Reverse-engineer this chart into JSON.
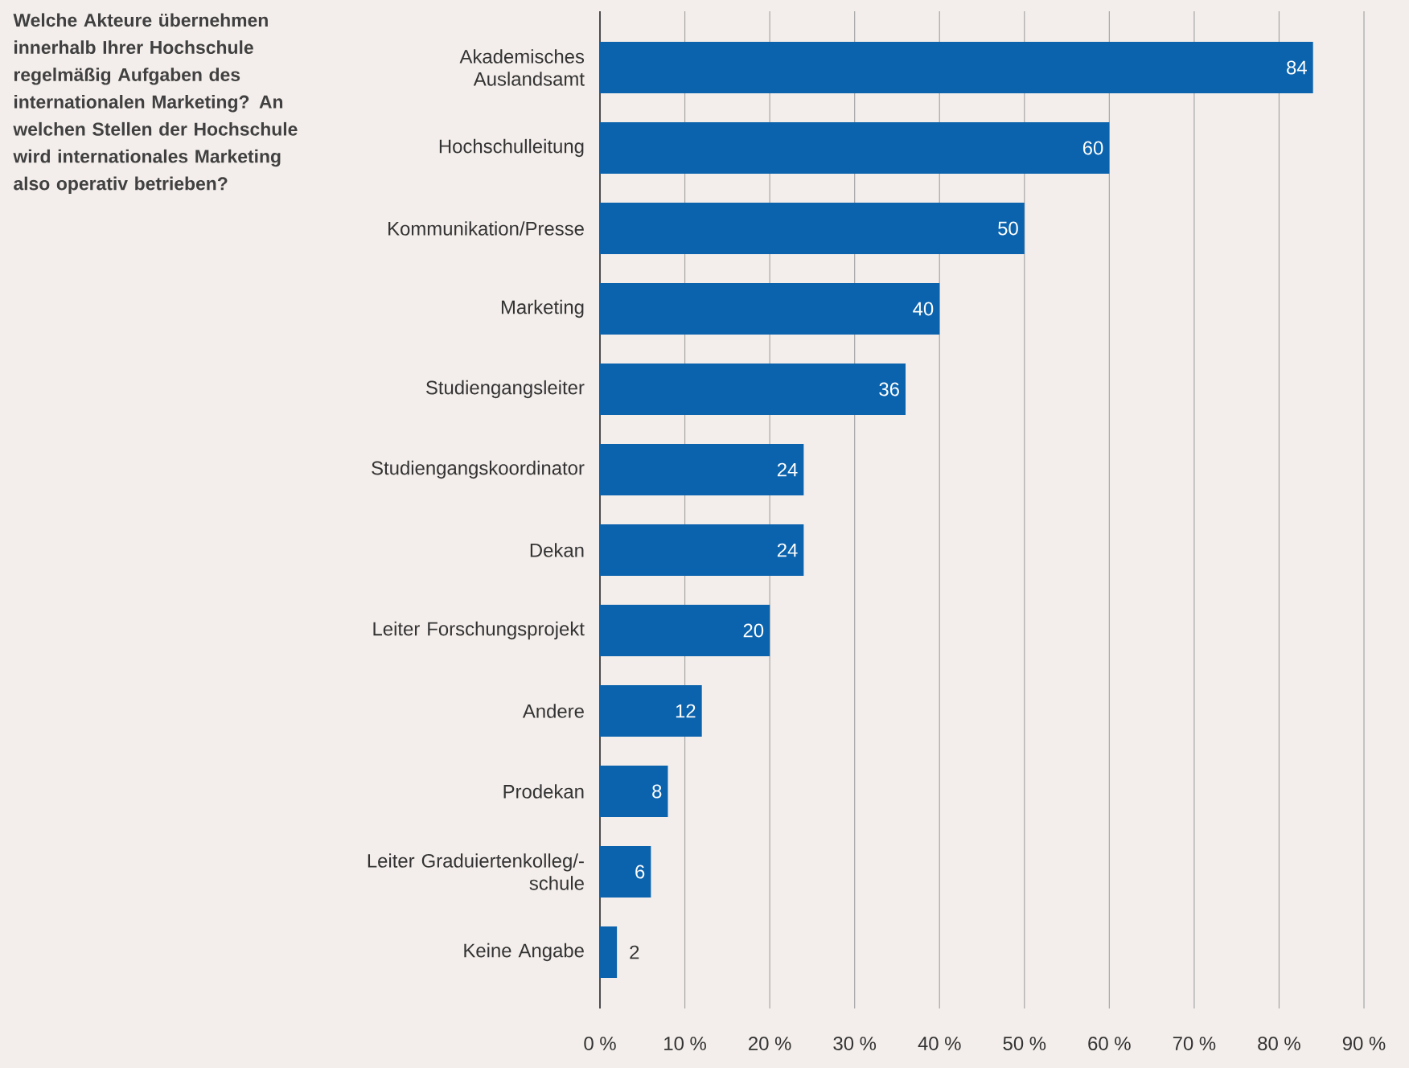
{
  "chart_data": {
    "type": "bar",
    "orientation": "horizontal",
    "title": "Welche Akteure übernehmen innerhalb Ihrer Hochschule regelmäßig Aufgaben des internationalen Marketing? An welchen Stellen der Hochschule wird internationales Marketing also operativ betrieben?",
    "categories": [
      "Akademisches Auslandsamt",
      "Hochschulleitung",
      "Kommunikation/Presse",
      "Marketing",
      "Studiengangsleiter",
      "Studiengangskoordinator",
      "Dekan",
      "Leiter Forschungsprojekt",
      "Andere",
      "Prodekan",
      "Leiter Graduiertenkolleg/-schule",
      "Keine Angabe"
    ],
    "values": [
      84,
      60,
      50,
      40,
      36,
      24,
      24,
      20,
      12,
      8,
      6,
      2
    ],
    "color": "#0b63ad",
    "data_labels": true,
    "xlim": [
      0,
      90
    ],
    "xticks": [
      {
        "value": 0,
        "label": "0 %"
      },
      {
        "value": 10,
        "label": "10 %"
      },
      {
        "value": 20,
        "label": "20 %"
      },
      {
        "value": 30,
        "label": "30 %"
      },
      {
        "value": 40,
        "label": "40 %"
      },
      {
        "value": 50,
        "label": "50 %"
      },
      {
        "value": 60,
        "label": "60 %"
      },
      {
        "value": 70,
        "label": "70 %"
      },
      {
        "value": 80,
        "label": "80 %"
      },
      {
        "value": 90,
        "label": "90 %"
      }
    ],
    "grid": "x"
  }
}
